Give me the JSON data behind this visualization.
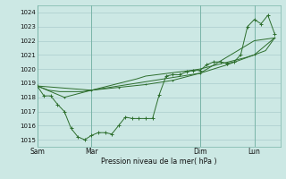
{
  "bg_color": "#cce8e4",
  "grid_color": "#aacccc",
  "line_color": "#2d6e2d",
  "marker_color": "#2d6e2d",
  "xlabel": "Pression niveau de la mer( hPa )",
  "ylim": [
    1014.5,
    1024.5
  ],
  "yticks": [
    1015,
    1016,
    1017,
    1018,
    1019,
    1020,
    1021,
    1022,
    1023,
    1024
  ],
  "xtick_labels": [
    "Sam",
    "Mar",
    "Dim",
    "Lun"
  ],
  "xtick_positions": [
    0,
    48,
    144,
    192
  ],
  "vline_positions": [
    0,
    48,
    144,
    192
  ],
  "series1_x": [
    0,
    10,
    20,
    30,
    40,
    48,
    58,
    68,
    78,
    88,
    96,
    106,
    116,
    126,
    136,
    144,
    154,
    164,
    174,
    184,
    192,
    202,
    210
  ],
  "series1_y": [
    1018.8,
    1018.5,
    1018.4,
    1018.4,
    1018.4,
    1018.5,
    1018.7,
    1018.9,
    1019.1,
    1019.3,
    1019.5,
    1019.6,
    1019.7,
    1019.8,
    1019.9,
    1020.0,
    1020.2,
    1020.4,
    1020.6,
    1020.8,
    1021.0,
    1021.3,
    1022.2
  ],
  "series2_x": [
    0,
    6,
    12,
    18,
    24,
    30,
    36,
    42,
    48,
    54,
    60,
    66,
    72,
    78,
    84,
    90,
    96,
    102,
    108,
    114,
    120,
    126,
    132,
    138,
    144,
    150,
    156,
    162,
    168,
    174,
    180,
    186,
    192,
    198,
    204,
    210
  ],
  "series2_y": [
    1018.8,
    1018.1,
    1018.1,
    1017.5,
    1017.0,
    1015.8,
    1015.2,
    1015.0,
    1015.3,
    1015.5,
    1015.5,
    1015.4,
    1016.0,
    1016.6,
    1016.5,
    1016.5,
    1016.5,
    1016.5,
    1018.2,
    1019.5,
    1019.6,
    1019.6,
    1019.8,
    1019.9,
    1019.9,
    1020.3,
    1020.5,
    1020.5,
    1020.4,
    1020.5,
    1021.0,
    1023.0,
    1023.5,
    1023.2,
    1023.8,
    1022.5
  ],
  "series3_x": [
    0,
    24,
    48,
    72,
    96,
    120,
    144,
    168,
    192,
    210
  ],
  "series3_y": [
    1018.8,
    1018.0,
    1018.5,
    1018.7,
    1018.9,
    1019.2,
    1019.7,
    1020.3,
    1021.0,
    1022.2
  ],
  "series4_x": [
    0,
    48,
    96,
    144,
    192,
    210
  ],
  "series4_y": [
    1018.8,
    1018.5,
    1019.1,
    1019.7,
    1022.0,
    1022.2
  ]
}
